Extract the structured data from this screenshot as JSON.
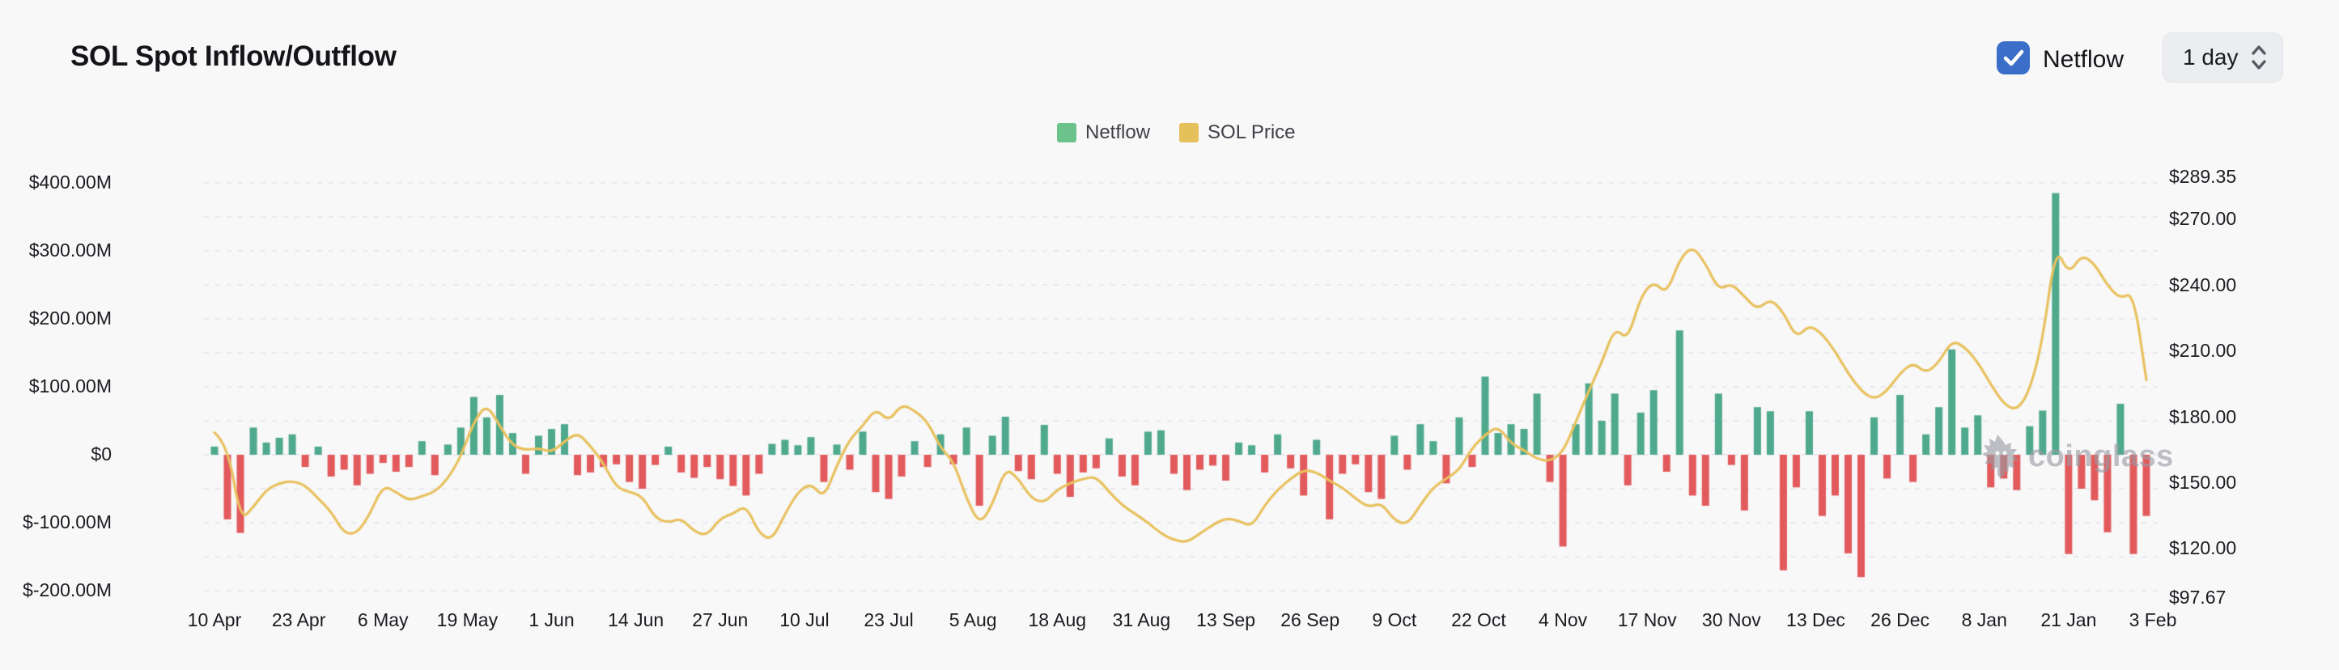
{
  "header": {
    "title": "SOL Spot Inflow/Outflow",
    "netflow_checkbox_label": "Netflow",
    "netflow_checkbox_checked": true,
    "interval_select_value": "1 day"
  },
  "legend": {
    "netflow_label": "Netflow",
    "price_label": "SOL Price"
  },
  "watermark": {
    "text": "coinglass"
  },
  "colors": {
    "netflow_positive": "#4fa98c",
    "netflow_negative": "#e25a5c",
    "price_line": "#e8c15e",
    "legend_netflow": "#6cc28b",
    "legend_price": "#e6c05a",
    "checkbox": "#3b6ec8",
    "grid": "#e9e9ed",
    "background": "#f8f8f9",
    "axis_text": "#1a1c20"
  },
  "chart_data": {
    "type": "bar",
    "subtype": "combo-bar-line-dual-axis",
    "title": "SOL Spot Inflow/Outflow",
    "x_labels": [
      "10 Apr",
      "23 Apr",
      "6 May",
      "19 May",
      "1 Jun",
      "14 Jun",
      "27 Jun",
      "10 Jul",
      "23 Jul",
      "5 Aug",
      "18 Aug",
      "31 Aug",
      "13 Sep",
      "26 Sep",
      "9 Oct",
      "22 Oct",
      "4 Nov",
      "17 Nov",
      "30 Nov",
      "13 Dec",
      "26 Dec",
      "8 Jan",
      "21 Jan",
      "3 Feb"
    ],
    "x_tick_interval_days": 13,
    "sample_interval_days": 2,
    "start_label": "10 Apr",
    "end_label": "3 Feb",
    "left_axis": {
      "title": "Netflow (USD)",
      "labels": [
        "$400.00M",
        "$300.00M",
        "$200.00M",
        "$100.00M",
        "$0",
        "$-100.00M",
        "$-200.00M"
      ],
      "values": [
        400,
        300,
        200,
        100,
        0,
        -100,
        -200
      ],
      "min": -200,
      "max": 400,
      "minor_step": 50,
      "grid": "dashed"
    },
    "right_axis": {
      "title": "SOL Price (USD)",
      "labels": [
        "$289.35",
        "$270.00",
        "$240.00",
        "$210.00",
        "$180.00",
        "$150.00",
        "$120.00",
        "$97.67"
      ],
      "values": [
        289.35,
        270,
        240,
        210,
        180,
        150,
        120,
        97.67
      ],
      "min": 97.67,
      "max": 289.35
    },
    "legend_position": "top-center",
    "series": [
      {
        "name": "Netflow",
        "type": "bar",
        "axis": "left",
        "unit": "USD millions",
        "values": [
          12,
          -95,
          -115,
          40,
          18,
          25,
          30,
          -18,
          12,
          -32,
          -22,
          -45,
          -28,
          -12,
          -25,
          -18,
          20,
          -30,
          15,
          40,
          85,
          55,
          88,
          32,
          -28,
          28,
          38,
          45,
          -30,
          -26,
          -18,
          -14,
          -40,
          -50,
          -15,
          12,
          -26,
          -34,
          -18,
          -36,
          -46,
          -60,
          -28,
          16,
          22,
          14,
          26,
          -40,
          15,
          -22,
          34,
          -55,
          -65,
          -32,
          20,
          -18,
          30,
          -14,
          40,
          -75,
          28,
          56,
          -24,
          -36,
          44,
          -28,
          -62,
          -26,
          -20,
          24,
          -32,
          -45,
          34,
          36,
          -28,
          -52,
          -22,
          -16,
          -38,
          18,
          14,
          -26,
          30,
          -20,
          -60,
          22,
          -95,
          -28,
          -14,
          -55,
          -65,
          28,
          -22,
          45,
          20,
          -42,
          55,
          -18,
          115,
          32,
          45,
          38,
          90,
          -40,
          -135,
          45,
          105,
          50,
          90,
          -45,
          62,
          95,
          -25,
          183,
          -60,
          -75,
          90,
          -15,
          -82,
          70,
          64,
          -170,
          -48,
          64,
          -90,
          -60,
          -145,
          -180,
          55,
          -35,
          88,
          -40,
          30,
          70,
          155,
          40,
          58,
          -48,
          -35,
          -52,
          42,
          65,
          385,
          -146,
          -50,
          -67,
          -114,
          75,
          -146,
          -90
        ]
      },
      {
        "name": "SOL Price",
        "type": "line",
        "axis": "right",
        "unit": "USD",
        "values": [
          173,
          168,
          133,
          139,
          147,
          150,
          151,
          149,
          143,
          137,
          127,
          127,
          136,
          149,
          146,
          142,
          144,
          146,
          152,
          162,
          178,
          186,
          176,
          167,
          165,
          166,
          164,
          169,
          173,
          167,
          159,
          148,
          146,
          144,
          134,
          132,
          134,
          128,
          126,
          134,
          136,
          140,
          127,
          124,
          136,
          146,
          150,
          143,
          158,
          170,
          176,
          184,
          178,
          186,
          183,
          178,
          166,
          160,
          143,
          131,
          140,
          157,
          152,
          143,
          141,
          147,
          150,
          152,
          153,
          146,
          140,
          136,
          132,
          127,
          124,
          123,
          127,
          131,
          134,
          133,
          130,
          140,
          147,
          152,
          156,
          155,
          151,
          148,
          143,
          139,
          141,
          133,
          131,
          140,
          148,
          152,
          156,
          166,
          172,
          176,
          168,
          165,
          161,
          160,
          164,
          178,
          192,
          205,
          221,
          215,
          235,
          242,
          236,
          252,
          258,
          250,
          238,
          241,
          235,
          229,
          234,
          228,
          216,
          222,
          218,
          210,
          200,
          192,
          188,
          192,
          200,
          205,
          200,
          205,
          215,
          212,
          205,
          195,
          186,
          183,
          192,
          215,
          258,
          245,
          254,
          250,
          240,
          234,
          237,
          197
        ]
      }
    ]
  }
}
